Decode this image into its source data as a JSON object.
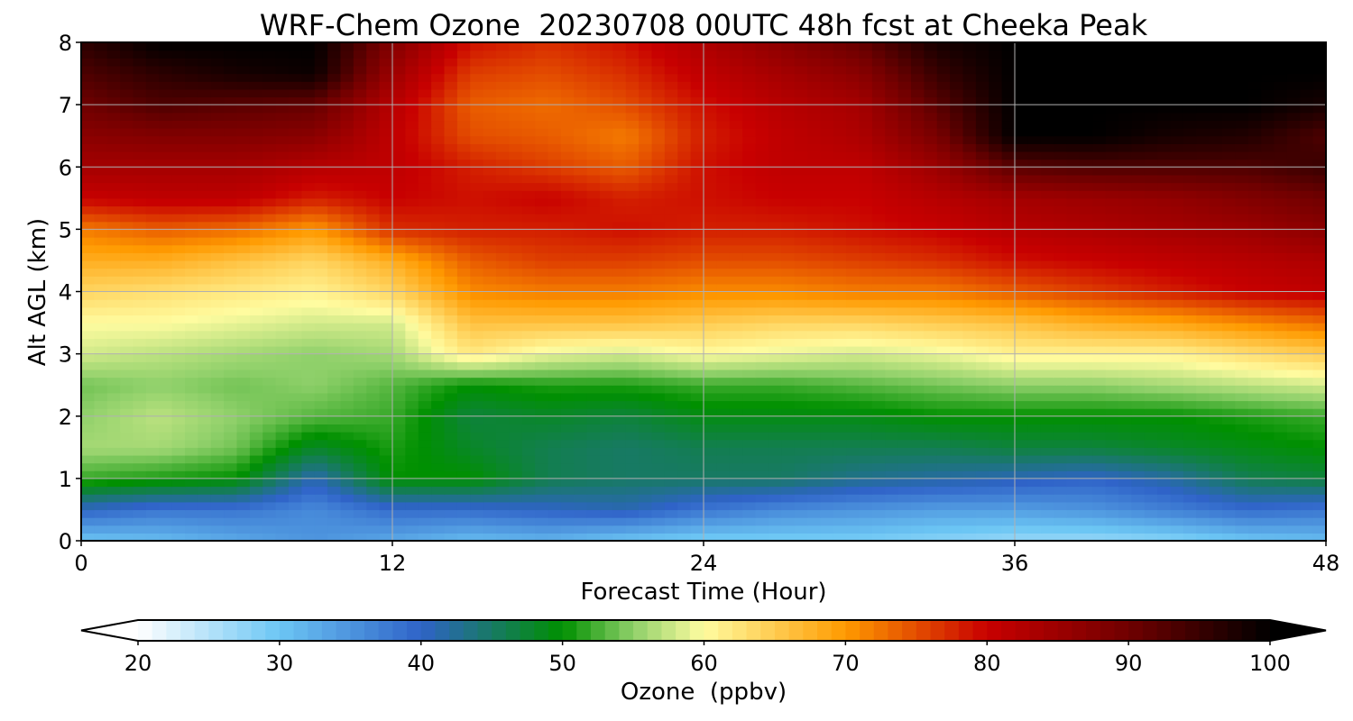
{
  "chart_data": {
    "type": "heatmap",
    "title": "WRF-Chem Ozone  20230708 00UTC 48h fcst at Cheeka Peak",
    "xlabel": "Forecast Time (Hour)",
    "ylabel": "Alt AGL (km)",
    "xlim": [
      0,
      48
    ],
    "ylim": [
      0,
      8
    ],
    "xticks": [
      "0",
      "12",
      "24",
      "36",
      "48"
    ],
    "yticks": [
      "0",
      "1",
      "2",
      "3",
      "4",
      "5",
      "6",
      "7",
      "8"
    ],
    "grid": true,
    "x": [
      0,
      3,
      6,
      9,
      12,
      15,
      18,
      21,
      24,
      27,
      30,
      33,
      36,
      39,
      42,
      45,
      48
    ],
    "y": [
      0,
      0.5,
      1,
      1.5,
      2,
      2.5,
      3,
      3.5,
      4,
      4.5,
      5,
      5.5,
      6,
      6.5,
      7,
      7.5,
      8
    ],
    "z": [
      [
        30,
        31,
        33,
        35,
        33,
        31,
        32,
        30,
        29,
        29,
        29,
        28,
        27,
        27,
        28,
        30,
        31
      ],
      [
        40,
        38,
        38,
        36,
        39,
        39,
        40,
        41,
        38,
        36,
        35,
        34,
        34,
        35,
        37,
        39,
        38
      ],
      [
        52,
        51,
        50,
        41,
        50,
        50,
        46,
        45,
        45,
        45,
        43,
        42,
        41,
        40,
        42,
        46,
        47
      ],
      [
        56,
        56,
        54,
        48,
        51,
        48,
        46,
        45,
        46,
        46,
        46,
        46,
        47,
        47,
        48,
        49,
        50
      ],
      [
        55,
        57,
        55,
        53,
        52,
        47,
        48,
        47,
        49,
        49,
        49,
        50,
        50,
        50,
        50,
        51,
        52
      ],
      [
        54,
        55,
        54,
        55,
        53,
        50,
        51,
        51,
        52,
        52,
        53,
        54,
        55,
        55,
        56,
        57,
        58
      ],
      [
        58,
        57,
        56,
        55,
        56,
        62,
        59,
        58,
        60,
        59,
        58,
        59,
        61,
        61,
        61,
        63,
        65
      ],
      [
        60,
        60,
        59,
        58,
        58,
        66,
        66,
        66,
        65,
        64,
        64,
        65,
        66,
        68,
        69,
        71,
        73
      ],
      [
        64,
        63,
        62,
        61,
        64,
        71,
        72,
        72,
        71,
        71,
        72,
        72,
        74,
        76,
        78,
        80,
        81
      ],
      [
        68,
        68,
        66,
        64,
        68,
        74,
        76,
        76,
        75,
        75,
        76,
        77,
        79,
        80,
        81,
        82,
        83
      ],
      [
        72,
        74,
        73,
        70,
        77,
        78,
        78,
        79,
        78,
        78,
        79,
        80,
        82,
        83,
        84,
        85,
        87
      ],
      [
        80,
        81,
        81,
        78,
        80,
        79,
        80,
        78,
        79,
        80,
        80,
        82,
        84,
        85,
        86,
        88,
        90
      ],
      [
        84,
        84,
        84,
        82,
        81,
        78,
        76,
        74,
        79,
        81,
        81,
        85,
        92,
        93,
        93,
        93,
        95
      ],
      [
        87,
        88,
        88,
        87,
        81,
        75,
        74,
        72,
        78,
        81,
        83,
        89,
        100,
        100,
        98,
        97,
        93
      ],
      [
        90,
        93,
        92,
        91,
        82,
        74,
        73,
        75,
        79,
        82,
        84,
        92,
        100,
        100,
        100,
        100,
        98
      ],
      [
        93,
        96,
        98,
        99,
        85,
        76,
        75,
        77,
        81,
        84,
        87,
        95,
        100,
        100,
        100,
        100,
        100
      ],
      [
        96,
        100,
        100,
        100,
        88,
        79,
        77,
        79,
        83,
        87,
        91,
        98,
        100,
        100,
        100,
        100,
        100
      ]
    ],
    "colorbar": {
      "label": "Ozone  (ppbv)",
      "min": 20,
      "max": 100,
      "ticks": [
        "20",
        "30",
        "40",
        "50",
        "60",
        "70",
        "80",
        "90",
        "100"
      ],
      "extend": "both",
      "colormap": [
        [
          20,
          "#ffffff"
        ],
        [
          30,
          "#6cc6f4"
        ],
        [
          40,
          "#2f63c8"
        ],
        [
          50,
          "#009000"
        ],
        [
          55,
          "#8fd06a"
        ],
        [
          60,
          "#fffca0"
        ],
        [
          70,
          "#ff9a00"
        ],
        [
          80,
          "#c80000"
        ],
        [
          90,
          "#700000"
        ],
        [
          100,
          "#000000"
        ]
      ]
    }
  }
}
